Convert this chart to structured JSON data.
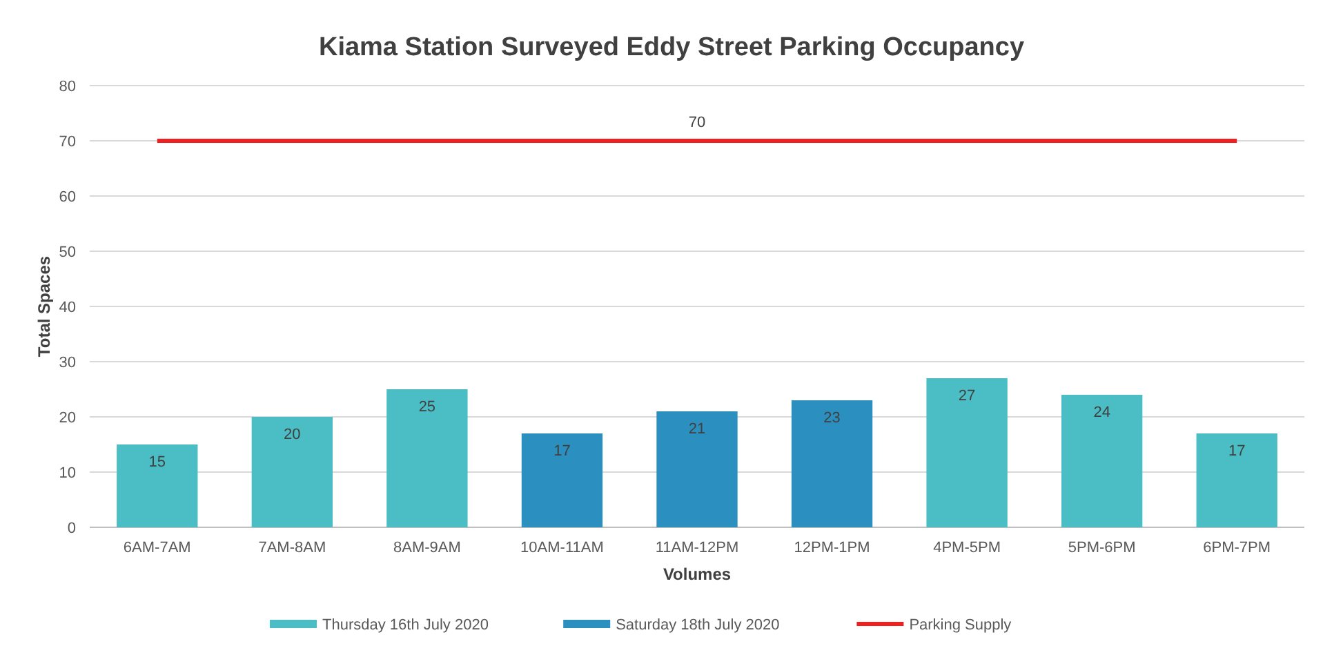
{
  "chart_data": {
    "type": "bar",
    "title": "Kiama Station Surveyed Eddy Street Parking Occupancy",
    "xlabel": "Volumes",
    "ylabel": "Total Spaces",
    "categories": [
      "6AM-7AM",
      "7AM-8AM",
      "8AM-9AM",
      "10AM-11AM",
      "11AM-12PM",
      "12PM-1PM",
      "4PM-5PM",
      "5PM-6PM",
      "6PM-7PM"
    ],
    "series": [
      {
        "name": "Thursday 16th July 2020",
        "color": "#4bbdc4",
        "values": [
          15,
          20,
          25,
          null,
          null,
          null,
          27,
          24,
          17
        ],
        "value_labels": [
          "15",
          "20",
          "25",
          null,
          null,
          null,
          "27",
          "24",
          "17"
        ]
      },
      {
        "name": "Saturday 18th July 2020",
        "color": "#2b8fbf",
        "values": [
          null,
          null,
          null,
          17,
          21,
          23,
          null,
          null,
          null
        ],
        "value_labels": [
          null,
          null,
          null,
          "17",
          "21",
          "23",
          null,
          null,
          null
        ]
      },
      {
        "name": "Parking Supply",
        "type": "line",
        "color": "#ee2020",
        "values": [
          70,
          70,
          70,
          70,
          70,
          70,
          70,
          70,
          70
        ],
        "value_labels": [
          null,
          null,
          null,
          null,
          "70",
          null,
          null,
          null,
          null
        ]
      }
    ],
    "ylim": [
      0,
      80
    ],
    "yticks": [
      0,
      10,
      20,
      30,
      40,
      50,
      60,
      70,
      80
    ],
    "grid": "y",
    "legend": "bottom"
  }
}
